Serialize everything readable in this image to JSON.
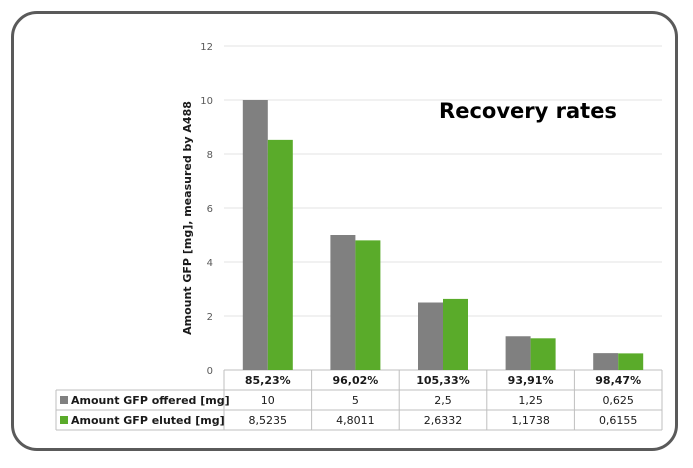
{
  "chart_data": {
    "type": "bar",
    "title": "Recovery rates",
    "ylabel": "Amount GFP [mg], measured by A488",
    "ylim": [
      0,
      12
    ],
    "yticks": [
      0,
      2,
      4,
      6,
      8,
      10,
      12
    ],
    "grid": true,
    "categories": [
      "85,23%",
      "96,02%",
      "105,33%",
      "93,91%",
      "98,47%"
    ],
    "series": [
      {
        "name": "Amount GFP offered [mg]",
        "color": "#808080",
        "values": [
          10,
          5,
          2.5,
          1.25,
          0.625
        ],
        "labels": [
          "10",
          "5",
          "2,5",
          "1,25",
          "0,625"
        ]
      },
      {
        "name": "Amount GFP eluted [mg]",
        "color": "#5aab2a",
        "values": [
          8.5235,
          4.8011,
          2.6332,
          1.1738,
          0.6155
        ],
        "labels": [
          "8,5235",
          "4,8011",
          "2,6332",
          "1,1738",
          "0,6155"
        ]
      }
    ]
  }
}
